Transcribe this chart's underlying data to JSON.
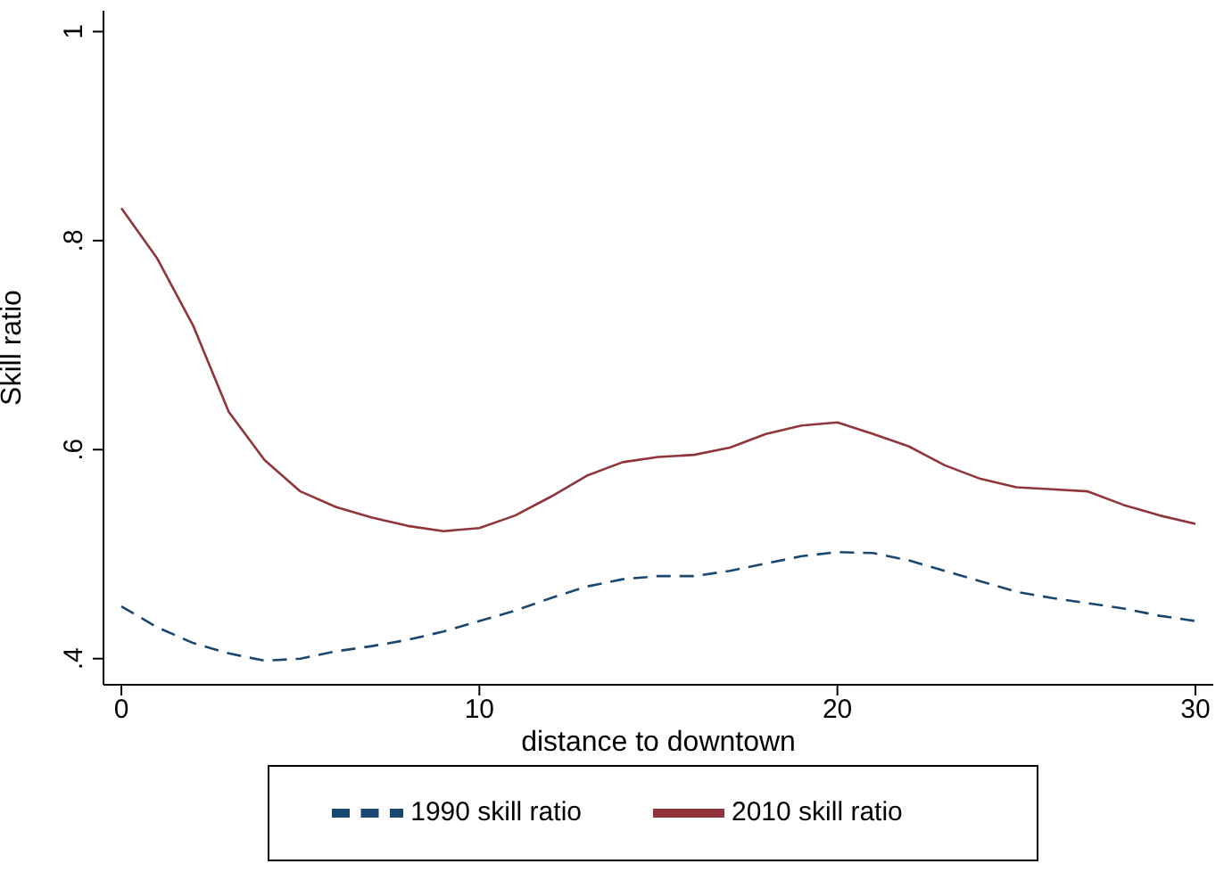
{
  "chart_data": {
    "type": "line",
    "xlabel": "distance to downtown",
    "ylabel": "Skill ratio",
    "x": [
      0,
      1,
      2,
      3,
      4,
      5,
      6,
      7,
      8,
      9,
      10,
      11,
      12,
      13,
      14,
      15,
      16,
      17,
      18,
      19,
      20,
      21,
      22,
      23,
      24,
      25,
      26,
      27,
      28,
      29,
      30
    ],
    "series": [
      {
        "name": "1990 skill ratio",
        "color": "#1a476f",
        "line_style": "dashed",
        "values": [
          0.45,
          0.43,
          0.415,
          0.405,
          0.398,
          0.4,
          0.407,
          0.412,
          0.418,
          0.426,
          0.436,
          0.446,
          0.458,
          0.469,
          0.476,
          0.479,
          0.479,
          0.484,
          0.491,
          0.498,
          0.502,
          0.501,
          0.494,
          0.484,
          0.474,
          0.464,
          0.458,
          0.453,
          0.448,
          0.441,
          0.436
        ]
      },
      {
        "name": "2010 skill ratio",
        "color": "#90353b",
        "line_style": "solid",
        "values": [
          0.831,
          0.783,
          0.719,
          0.636,
          0.59,
          0.56,
          0.545,
          0.535,
          0.527,
          0.522,
          0.525,
          0.537,
          0.555,
          0.575,
          0.588,
          0.593,
          0.595,
          0.602,
          0.615,
          0.623,
          0.626,
          0.615,
          0.603,
          0.585,
          0.572,
          0.564,
          0.562,
          0.56,
          0.547,
          0.537,
          0.529
        ]
      }
    ],
    "xlim": [
      -0.5,
      30.5
    ],
    "xticks": [
      0,
      10,
      20,
      30
    ],
    "ylim": [
      0.375,
      1.02
    ],
    "yticks": [
      {
        "value": 0.4,
        "label": ".4"
      },
      {
        "value": 0.6,
        "label": ".6"
      },
      {
        "value": 0.8,
        "label": ".8"
      },
      {
        "value": 1,
        "label": "1"
      }
    ],
    "grid": false,
    "legend": "bottom",
    "marker": "none"
  }
}
